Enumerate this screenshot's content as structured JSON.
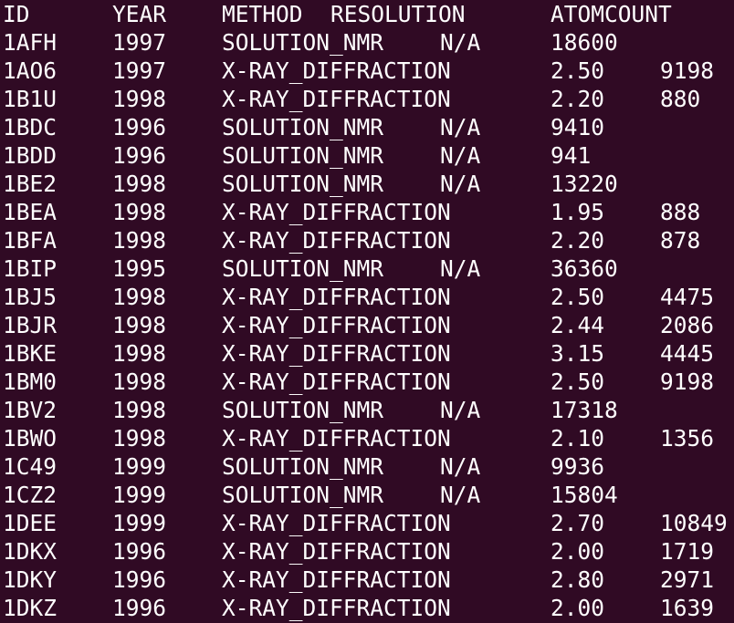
{
  "header": [
    "ID",
    "YEAR",
    "METHOD",
    "RESOLUTION",
    "ATOMCOUNT"
  ],
  "rows": [
    [
      "1AFH",
      "1997",
      "SOLUTION_NMR",
      "N/A",
      "18600",
      ""
    ],
    [
      "1AO6",
      "1997",
      "X-RAY_DIFFRACTION",
      "",
      "2.50",
      "9198"
    ],
    [
      "1B1U",
      "1998",
      "X-RAY_DIFFRACTION",
      "",
      "2.20",
      "880"
    ],
    [
      "1BDC",
      "1996",
      "SOLUTION_NMR",
      "N/A",
      "9410",
      ""
    ],
    [
      "1BDD",
      "1996",
      "SOLUTION_NMR",
      "N/A",
      "941",
      ""
    ],
    [
      "1BE2",
      "1998",
      "SOLUTION_NMR",
      "N/A",
      "13220",
      ""
    ],
    [
      "1BEA",
      "1998",
      "X-RAY_DIFFRACTION",
      "",
      "1.95",
      "888"
    ],
    [
      "1BFA",
      "1998",
      "X-RAY_DIFFRACTION",
      "",
      "2.20",
      "878"
    ],
    [
      "1BIP",
      "1995",
      "SOLUTION_NMR",
      "N/A",
      "36360",
      ""
    ],
    [
      "1BJ5",
      "1998",
      "X-RAY_DIFFRACTION",
      "",
      "2.50",
      "4475"
    ],
    [
      "1BJR",
      "1998",
      "X-RAY_DIFFRACTION",
      "",
      "2.44",
      "2086"
    ],
    [
      "1BKE",
      "1998",
      "X-RAY_DIFFRACTION",
      "",
      "3.15",
      "4445"
    ],
    [
      "1BM0",
      "1998",
      "X-RAY_DIFFRACTION",
      "",
      "2.50",
      "9198"
    ],
    [
      "1BV2",
      "1998",
      "SOLUTION_NMR",
      "N/A",
      "17318",
      ""
    ],
    [
      "1BWO",
      "1998",
      "X-RAY_DIFFRACTION",
      "",
      "2.10",
      "1356"
    ],
    [
      "1C49",
      "1999",
      "SOLUTION_NMR",
      "N/A",
      "9936",
      ""
    ],
    [
      "1CZ2",
      "1999",
      "SOLUTION_NMR",
      "N/A",
      "15804",
      ""
    ],
    [
      "1DEE",
      "1999",
      "X-RAY_DIFFRACTION",
      "",
      "2.70",
      "10849"
    ],
    [
      "1DKX",
      "1996",
      "X-RAY_DIFFRACTION",
      "",
      "2.00",
      "1719"
    ],
    [
      "1DKY",
      "1996",
      "X-RAY_DIFFRACTION",
      "",
      "2.80",
      "2971"
    ],
    [
      "1DKZ",
      "1996",
      "X-RAY_DIFFRACTION",
      "",
      "2.00",
      "1639"
    ]
  ],
  "colors": {
    "background": "#300a24",
    "foreground": "#ffffff"
  }
}
